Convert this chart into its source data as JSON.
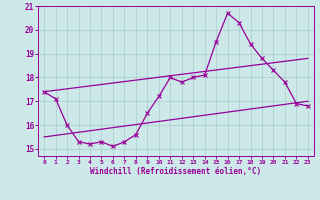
{
  "xlabel": "Windchill (Refroidissement éolien,°C)",
  "bg_color": "#cce8e8",
  "grid_color": "#aacccc",
  "line_color": "#990099",
  "xlim": [
    -0.5,
    23.5
  ],
  "ylim": [
    14.7,
    21.0
  ],
  "xticks": [
    0,
    1,
    2,
    3,
    4,
    5,
    6,
    7,
    8,
    9,
    10,
    11,
    12,
    13,
    14,
    15,
    16,
    17,
    18,
    19,
    20,
    21,
    22,
    23
  ],
  "yticks": [
    15,
    16,
    17,
    18,
    19,
    20,
    21
  ],
  "line1_x": [
    0,
    1,
    2,
    3,
    4,
    5,
    6,
    7,
    8,
    9,
    10,
    11,
    12,
    13,
    14,
    15,
    16,
    17,
    18,
    19,
    20,
    21,
    22,
    23
  ],
  "line1_y": [
    17.4,
    17.1,
    16.0,
    15.3,
    15.2,
    15.3,
    15.1,
    15.3,
    15.6,
    16.5,
    17.2,
    18.0,
    17.8,
    18.0,
    18.1,
    19.5,
    20.7,
    20.3,
    19.4,
    18.8,
    18.3,
    17.8,
    16.9,
    16.8
  ],
  "line2_x": [
    0,
    23
  ],
  "line2_y": [
    17.4,
    18.8
  ],
  "line3_x": [
    0,
    23
  ],
  "line3_y": [
    15.5,
    17.0
  ]
}
